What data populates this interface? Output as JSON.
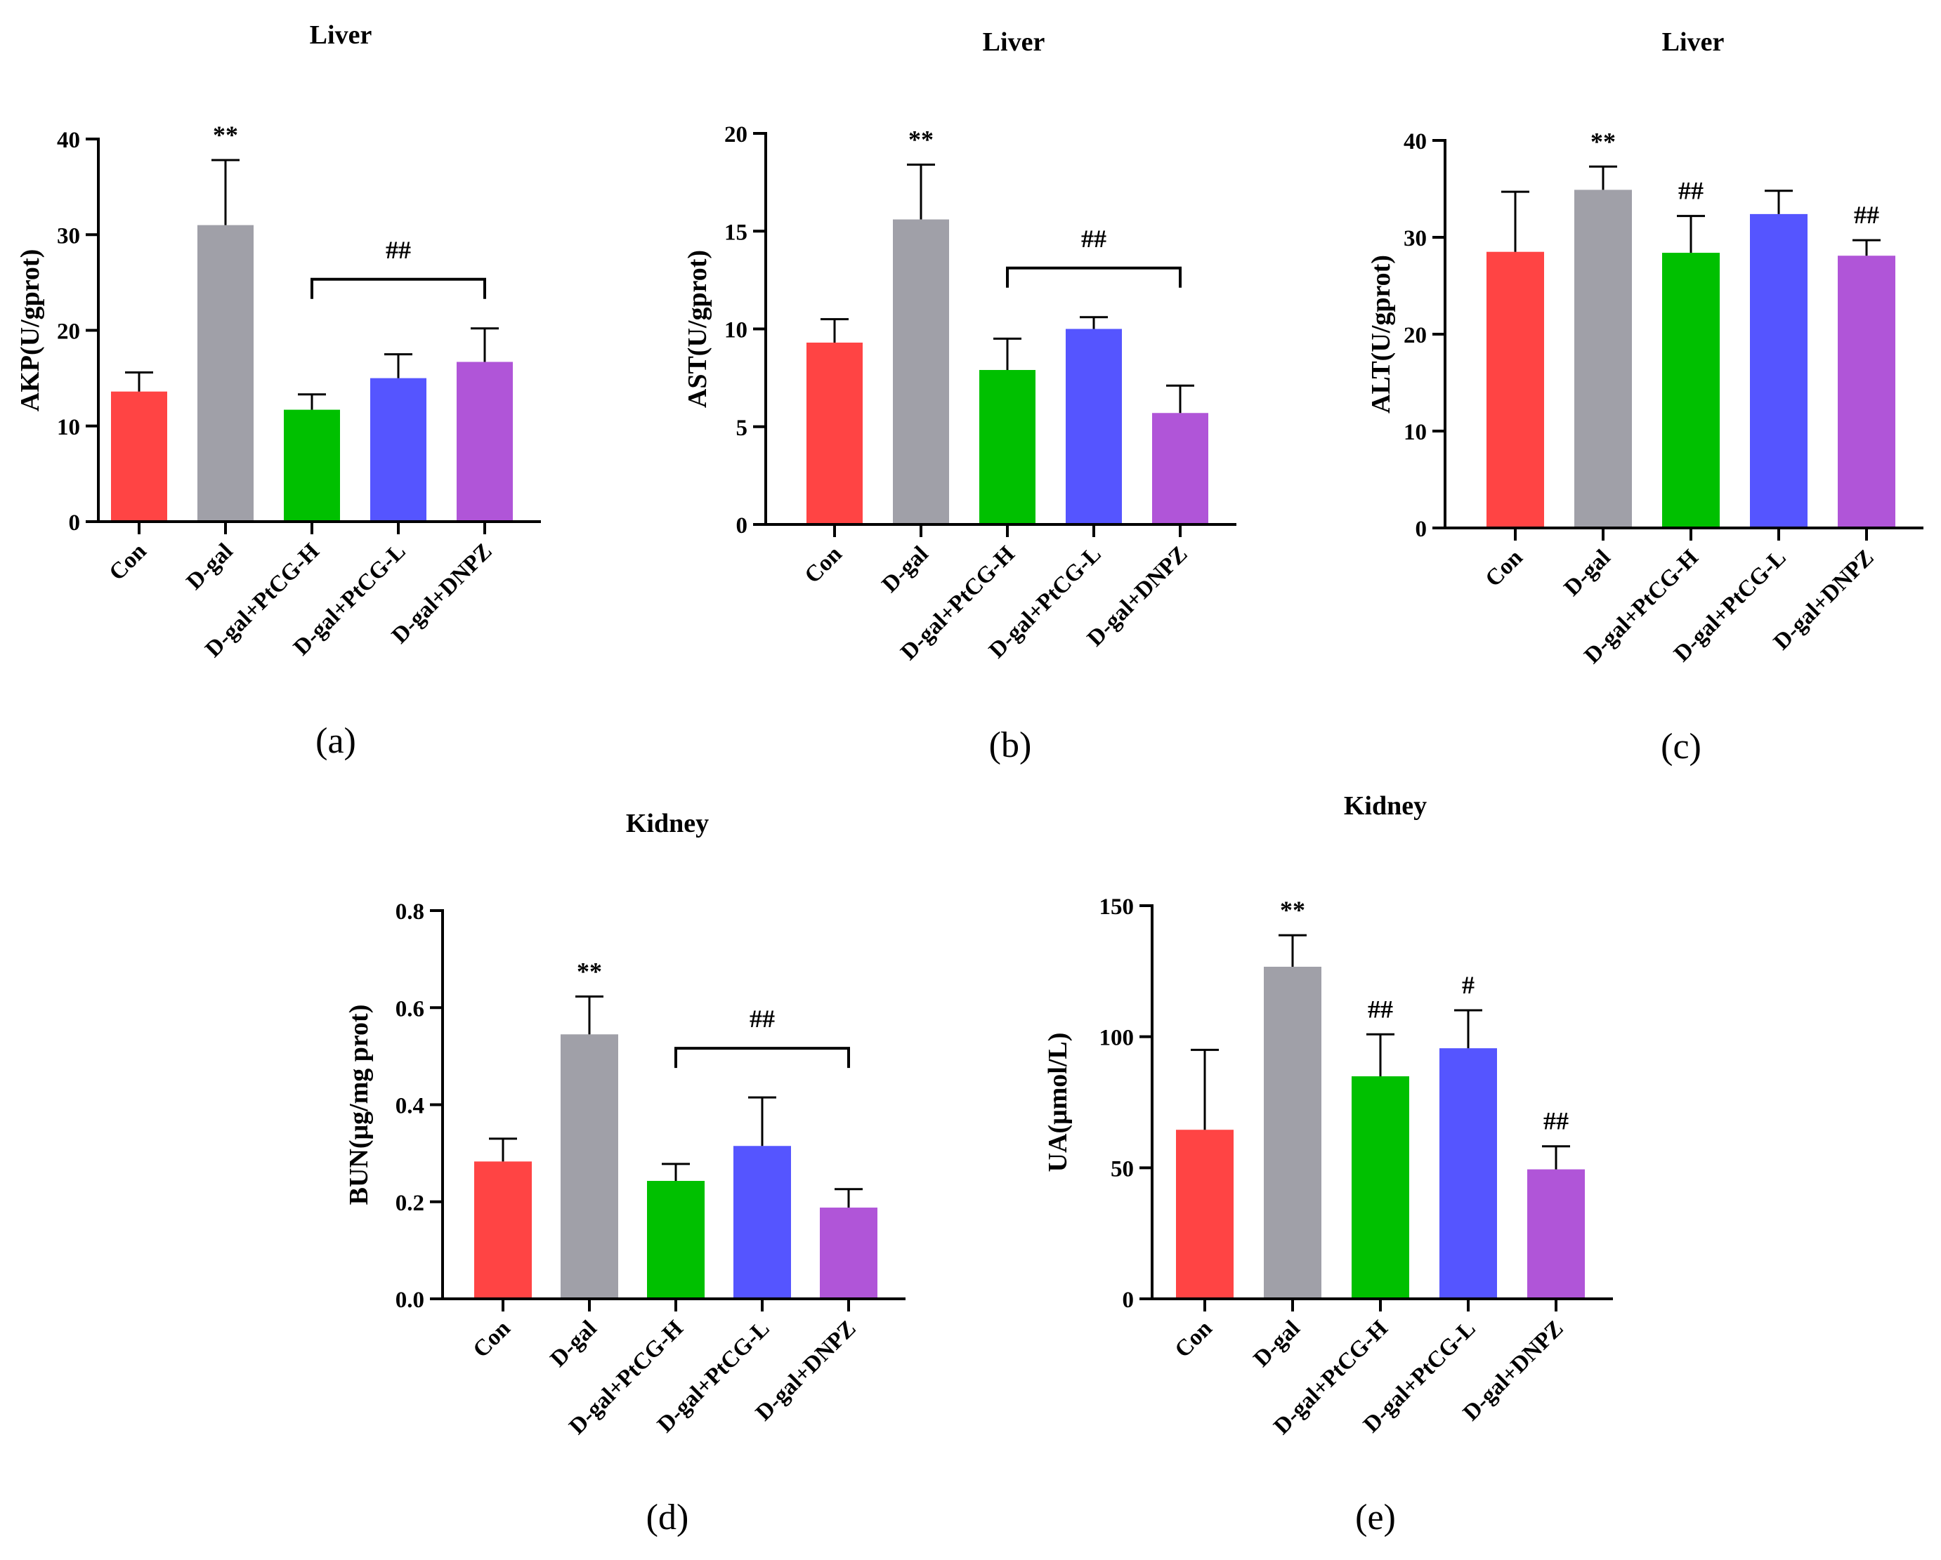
{
  "chart_data": [
    {
      "type": "bar",
      "panel": "(a)",
      "title": "Liver",
      "ylabel": "AKP(U/gprot)",
      "xlabel": "",
      "ylim": [
        0,
        40
      ],
      "yticks": [
        0,
        10,
        20,
        30,
        40
      ],
      "categories": [
        "Con",
        "D-gal",
        "D-gal+PtCG-H",
        "D-gal+PtCG-L",
        "D-gal+DNPZ"
      ],
      "values": [
        13.6,
        31.0,
        11.7,
        15.0,
        16.7
      ],
      "errors": [
        2.0,
        6.8,
        1.6,
        2.5,
        3.5
      ],
      "colors": [
        "#ff4444",
        "#a0a0a8",
        "#00c000",
        "#5555ff",
        "#b055d8"
      ],
      "markers": [
        "",
        "**",
        "",
        "",
        ""
      ],
      "bracket": {
        "from": 2,
        "to": 4,
        "label": "##"
      }
    },
    {
      "type": "bar",
      "panel": "(b)",
      "title": "Liver",
      "ylabel": "AST(U/gprot)",
      "xlabel": "",
      "ylim": [
        0,
        20
      ],
      "yticks": [
        0,
        5,
        10,
        15,
        20
      ],
      "categories": [
        "Con",
        "D-gal",
        "D-gal+PtCG-H",
        "D-gal+PtCG-L",
        "D-gal+DNPZ"
      ],
      "values": [
        9.3,
        15.6,
        7.9,
        10.0,
        5.7
      ],
      "errors": [
        1.2,
        2.8,
        1.6,
        0.6,
        1.4
      ],
      "colors": [
        "#ff4444",
        "#a0a0a8",
        "#00c000",
        "#5555ff",
        "#b055d8"
      ],
      "markers": [
        "",
        "**",
        "",
        "",
        ""
      ],
      "bracket": {
        "from": 2,
        "to": 4,
        "label": "##"
      }
    },
    {
      "type": "bar",
      "panel": "(c)",
      "title": "Liver",
      "ylabel": "ALT(U/gprot)",
      "xlabel": "",
      "ylim": [
        0,
        40
      ],
      "yticks": [
        0,
        10,
        20,
        30,
        40
      ],
      "categories": [
        "Con",
        "D-gal",
        "D-gal+PtCG-H",
        "D-gal+PtCG-L",
        "D-gal+DNPZ"
      ],
      "values": [
        28.5,
        34.9,
        28.4,
        32.4,
        28.1
      ],
      "errors": [
        6.2,
        2.4,
        3.8,
        2.4,
        1.6
      ],
      "colors": [
        "#ff4444",
        "#a0a0a8",
        "#00c000",
        "#5555ff",
        "#b055d8"
      ],
      "markers": [
        "",
        "**",
        "##",
        "",
        "##"
      ],
      "bracket": null
    },
    {
      "type": "bar",
      "panel": "(d)",
      "title": "Kidney",
      "ylabel": "BUN(μg/mg prot)",
      "xlabel": "",
      "ylim": [
        0,
        0.8
      ],
      "yticks": [
        0.0,
        0.2,
        0.4,
        0.6,
        0.8
      ],
      "ytick_labels": [
        "0.0",
        "0.2",
        "0.4",
        "0.6",
        "0.8"
      ],
      "categories": [
        "Con",
        "D-gal",
        "D-gal+PtCG-H",
        "D-gal+PtCG-L",
        "D-gal+DNPZ"
      ],
      "values": [
        0.283,
        0.545,
        0.243,
        0.315,
        0.188
      ],
      "errors": [
        0.047,
        0.078,
        0.035,
        0.1,
        0.038
      ],
      "colors": [
        "#ff4444",
        "#a0a0a8",
        "#00c000",
        "#5555ff",
        "#b055d8"
      ],
      "markers": [
        "",
        "**",
        "",
        "",
        ""
      ],
      "bracket": {
        "from": 2,
        "to": 4,
        "label": "##"
      }
    },
    {
      "type": "bar",
      "panel": "(e)",
      "title": "Kidney",
      "ylabel": "UA(μmol/L)",
      "xlabel": "",
      "ylim": [
        0,
        150
      ],
      "yticks": [
        0,
        50,
        100,
        150
      ],
      "categories": [
        "Con",
        "D-gal",
        "D-gal+PtCG-H",
        "D-gal+PtCG-L",
        "D-gal+DNPZ"
      ],
      "values": [
        64.5,
        126.7,
        84.9,
        95.6,
        49.4
      ],
      "errors": [
        30.5,
        12.0,
        16.0,
        14.5,
        8.8
      ],
      "colors": [
        "#ff4444",
        "#a0a0a8",
        "#00c000",
        "#5555ff",
        "#b055d8"
      ],
      "markers": [
        "",
        "**",
        "##",
        "#",
        "##"
      ],
      "bracket": null
    }
  ]
}
